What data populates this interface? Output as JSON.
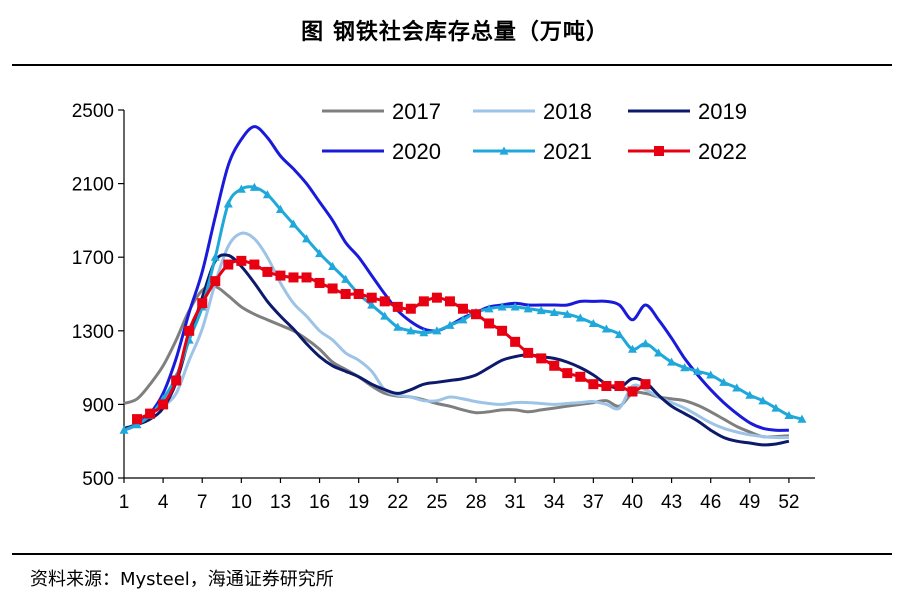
{
  "chart_data": {
    "type": "line",
    "title": "图  钢铁社会库存总量（万吨）",
    "source": "资料来源：Mysteel，海通证券研究所",
    "xlabel": "",
    "ylabel": "",
    "ylim": [
      500,
      2500
    ],
    "yticks": [
      500,
      900,
      1300,
      1700,
      2100,
      2500
    ],
    "xlim": [
      1,
      54
    ],
    "xticks": [
      1,
      4,
      7,
      10,
      13,
      16,
      19,
      22,
      25,
      28,
      31,
      34,
      37,
      40,
      43,
      46,
      49,
      52
    ],
    "legend_position": "top-center",
    "series": [
      {
        "name": "2017",
        "color": "#7f7f7f",
        "marker": "none",
        "x": [
          1,
          2,
          3,
          4,
          5,
          6,
          7,
          8,
          9,
          10,
          11,
          12,
          13,
          14,
          15,
          16,
          17,
          18,
          19,
          20,
          21,
          22,
          23,
          24,
          25,
          26,
          27,
          28,
          29,
          30,
          31,
          32,
          33,
          34,
          35,
          36,
          37,
          38,
          39,
          40,
          41,
          42,
          43,
          44,
          45,
          46,
          47,
          48,
          49,
          50,
          51,
          52
        ],
        "y": [
          905,
          930,
          1010,
          1110,
          1250,
          1410,
          1520,
          1540,
          1490,
          1430,
          1390,
          1360,
          1330,
          1300,
          1255,
          1200,
          1130,
          1090,
          1050,
          1000,
          960,
          945,
          940,
          925,
          905,
          890,
          870,
          855,
          860,
          870,
          870,
          860,
          870,
          880,
          890,
          900,
          910,
          920,
          890,
          960,
          960,
          940,
          930,
          920,
          895,
          860,
          820,
          780,
          750,
          725,
          725,
          730
        ]
      },
      {
        "name": "2018",
        "color": "#9dc3e6",
        "marker": "none",
        "x": [
          1,
          2,
          3,
          4,
          5,
          6,
          7,
          8,
          9,
          10,
          11,
          12,
          13,
          14,
          15,
          16,
          17,
          18,
          19,
          20,
          21,
          22,
          23,
          24,
          25,
          26,
          27,
          28,
          29,
          30,
          31,
          32,
          33,
          34,
          35,
          36,
          37,
          38,
          39,
          40,
          41,
          42,
          43,
          44,
          45,
          46,
          47,
          48,
          49,
          50,
          51,
          52
        ],
        "y": [
          760,
          800,
          850,
          890,
          960,
          1140,
          1310,
          1560,
          1760,
          1830,
          1800,
          1700,
          1560,
          1450,
          1380,
          1300,
          1250,
          1180,
          1140,
          1080,
          980,
          950,
          940,
          920,
          920,
          940,
          930,
          915,
          905,
          900,
          910,
          910,
          905,
          900,
          905,
          910,
          915,
          900,
          880,
          1000,
          980,
          940,
          910,
          880,
          840,
          800,
          770,
          750,
          735,
          725,
          720,
          720
        ]
      },
      {
        "name": "2019",
        "color": "#0d1a6b",
        "marker": "none",
        "x": [
          1,
          2,
          3,
          4,
          5,
          6,
          7,
          8,
          9,
          10,
          11,
          12,
          13,
          14,
          15,
          16,
          17,
          18,
          19,
          20,
          21,
          22,
          23,
          24,
          25,
          26,
          27,
          28,
          29,
          30,
          31,
          32,
          33,
          34,
          35,
          36,
          37,
          38,
          39,
          40,
          41,
          42,
          43,
          44,
          45,
          46,
          47,
          48,
          49,
          50,
          51,
          52
        ],
        "y": [
          770,
          790,
          820,
          880,
          1020,
          1260,
          1480,
          1680,
          1710,
          1650,
          1560,
          1460,
          1380,
          1310,
          1230,
          1160,
          1110,
          1080,
          1050,
          1010,
          980,
          960,
          980,
          1010,
          1020,
          1030,
          1040,
          1060,
          1100,
          1140,
          1160,
          1170,
          1160,
          1150,
          1130,
          1100,
          1060,
          1010,
          990,
          1040,
          1020,
          950,
          890,
          850,
          810,
          760,
          720,
          700,
          690,
          680,
          685,
          700
        ]
      },
      {
        "name": "2020",
        "color": "#1a1adb",
        "marker": "none",
        "x": [
          1,
          2,
          3,
          4,
          5,
          6,
          7,
          8,
          9,
          10,
          11,
          12,
          13,
          14,
          15,
          16,
          17,
          18,
          19,
          20,
          21,
          22,
          23,
          24,
          25,
          26,
          27,
          28,
          29,
          30,
          31,
          32,
          33,
          34,
          35,
          36,
          37,
          38,
          39,
          40,
          41,
          42,
          43,
          44,
          45,
          46,
          47,
          48,
          49,
          50,
          51,
          52
        ],
        "y": [
          760,
          790,
          850,
          960,
          1150,
          1400,
          1620,
          1920,
          2200,
          2340,
          2410,
          2350,
          2250,
          2180,
          2100,
          2000,
          1900,
          1780,
          1700,
          1600,
          1500,
          1410,
          1350,
          1310,
          1300,
          1330,
          1370,
          1400,
          1430,
          1440,
          1450,
          1440,
          1440,
          1440,
          1440,
          1460,
          1460,
          1460,
          1440,
          1360,
          1440,
          1360,
          1260,
          1150,
          1060,
          980,
          910,
          850,
          800,
          770,
          760,
          760
        ]
      },
      {
        "name": "2021",
        "color": "#1fa8d9",
        "marker": "triangle",
        "x": [
          1,
          2,
          3,
          4,
          5,
          6,
          7,
          8,
          9,
          10,
          11,
          12,
          13,
          14,
          15,
          16,
          17,
          18,
          19,
          20,
          21,
          22,
          23,
          24,
          25,
          26,
          27,
          28,
          29,
          30,
          31,
          32,
          33,
          34,
          35,
          36,
          37,
          38,
          39,
          40,
          41,
          42,
          43,
          44,
          45,
          46,
          47,
          48,
          49,
          50,
          51,
          52,
          53
        ],
        "y": [
          760,
          790,
          840,
          930,
          1050,
          1250,
          1430,
          1700,
          1990,
          2070,
          2080,
          2040,
          1960,
          1880,
          1800,
          1720,
          1650,
          1580,
          1500,
          1440,
          1380,
          1320,
          1300,
          1290,
          1300,
          1330,
          1360,
          1400,
          1420,
          1430,
          1430,
          1420,
          1410,
          1400,
          1390,
          1370,
          1340,
          1310,
          1280,
          1200,
          1230,
          1180,
          1130,
          1100,
          1080,
          1060,
          1020,
          990,
          950,
          920,
          880,
          840,
          820
        ]
      },
      {
        "name": "2022",
        "color": "#e60012",
        "marker": "square",
        "x": [
          2,
          3,
          4,
          5,
          6,
          7,
          8,
          9,
          10,
          11,
          12,
          13,
          14,
          15,
          16,
          17,
          18,
          19,
          20,
          21,
          22,
          23,
          24,
          25,
          26,
          27,
          28,
          29,
          30,
          31,
          32,
          33,
          34,
          35,
          36,
          37,
          38,
          39,
          40,
          41
        ],
        "y": [
          820,
          850,
          900,
          1030,
          1300,
          1450,
          1570,
          1660,
          1680,
          1660,
          1620,
          1600,
          1590,
          1590,
          1560,
          1530,
          1500,
          1500,
          1480,
          1460,
          1430,
          1420,
          1460,
          1480,
          1460,
          1420,
          1390,
          1340,
          1300,
          1240,
          1180,
          1150,
          1110,
          1070,
          1050,
          1010,
          1000,
          1000,
          970,
          1010
        ]
      }
    ]
  }
}
